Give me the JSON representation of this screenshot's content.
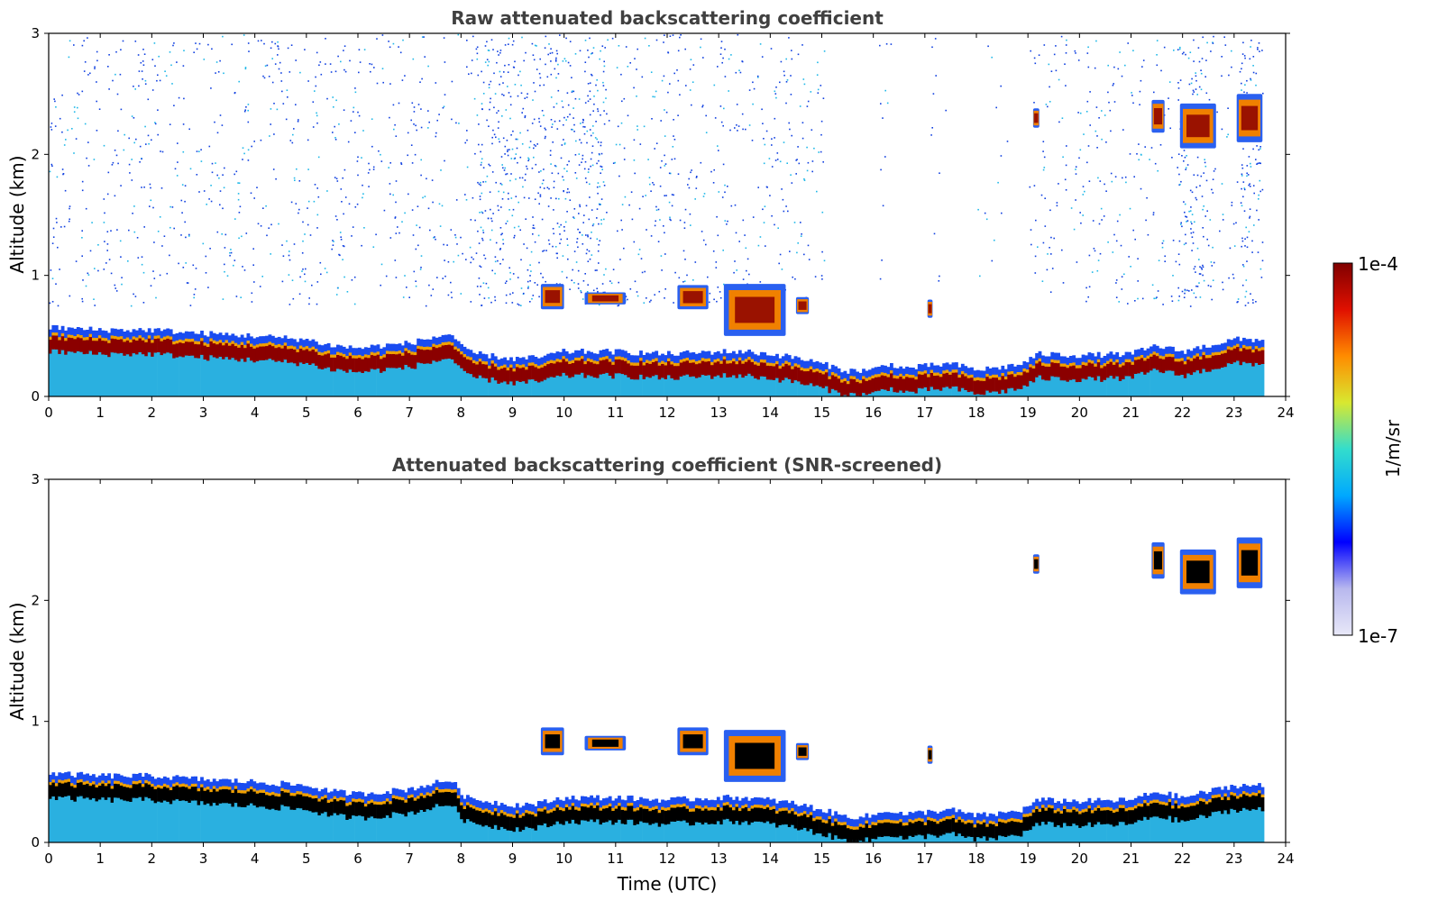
{
  "chart_data": [
    {
      "type": "heatmap",
      "title": "Raw attenuated backscattering coefficient",
      "xlabel": "",
      "ylabel": "Altitude (km)",
      "xlim": [
        0,
        24
      ],
      "ylim": [
        0,
        3
      ],
      "xticks": [
        "0",
        "1",
        "2",
        "3",
        "4",
        "5",
        "6",
        "7",
        "8",
        "9",
        "10",
        "11",
        "12",
        "13",
        "14",
        "15",
        "16",
        "17",
        "18",
        "19",
        "20",
        "21",
        "22",
        "23",
        "24"
      ],
      "yticks": [
        "0",
        "1",
        "2",
        "3"
      ],
      "data_end_time": 23.55,
      "features": [
        {
          "kind": "noise",
          "t0": 0,
          "t1": 15.05,
          "density": 0.16
        },
        {
          "kind": "noise",
          "t0": 8.3,
          "t1": 10.8,
          "density": 0.26
        },
        {
          "kind": "noise",
          "t0": 16.1,
          "t1": 16.5,
          "density": 0.05
        },
        {
          "kind": "noise",
          "t0": 17.1,
          "t1": 17.4,
          "density": 0.06
        },
        {
          "kind": "noise",
          "t0": 18.0,
          "t1": 18.6,
          "density": 0.04
        },
        {
          "kind": "noise",
          "t0": 19.0,
          "t1": 23.55,
          "density": 0.13
        },
        {
          "kind": "noise",
          "t0": 21.9,
          "t1": 22.6,
          "density": 0.3
        },
        {
          "kind": "noise",
          "t0": 23.1,
          "t1": 23.55,
          "density": 0.3
        },
        {
          "kind": "cloud",
          "t0": 9.55,
          "t1": 10.0,
          "z0": 0.72,
          "z1": 0.93
        },
        {
          "kind": "cloud",
          "t0": 10.4,
          "t1": 11.2,
          "z0": 0.76,
          "z1": 0.86
        },
        {
          "kind": "cloud",
          "t0": 12.2,
          "t1": 12.8,
          "z0": 0.72,
          "z1": 0.92
        },
        {
          "kind": "cloud",
          "t0": 13.1,
          "t1": 14.3,
          "z0": 0.5,
          "z1": 0.93
        },
        {
          "kind": "cloud",
          "t0": 14.5,
          "t1": 14.75,
          "z0": 0.68,
          "z1": 0.82
        },
        {
          "kind": "cloud",
          "t0": 17.05,
          "t1": 17.15,
          "z0": 0.65,
          "z1": 0.8
        },
        {
          "kind": "cloud",
          "t0": 19.1,
          "t1": 19.22,
          "z0": 2.22,
          "z1": 2.38
        },
        {
          "kind": "cloud",
          "t0": 21.4,
          "t1": 21.65,
          "z0": 2.18,
          "z1": 2.45
        },
        {
          "kind": "cloud",
          "t0": 21.95,
          "t1": 22.65,
          "z0": 2.05,
          "z1": 2.42
        },
        {
          "kind": "cloud",
          "t0": 23.05,
          "t1": 23.55,
          "z0": 2.1,
          "z1": 2.5
        }
      ]
    },
    {
      "type": "heatmap",
      "title": "Attenuated backscattering coefficient (SNR-screened)",
      "xlabel": "Time (UTC)",
      "ylabel": "Altitude (km)",
      "xlim": [
        0,
        24
      ],
      "ylim": [
        0,
        3
      ],
      "xticks": [
        "0",
        "1",
        "2",
        "3",
        "4",
        "5",
        "6",
        "7",
        "8",
        "9",
        "10",
        "11",
        "12",
        "13",
        "14",
        "15",
        "16",
        "17",
        "18",
        "19",
        "20",
        "21",
        "22",
        "23",
        "24"
      ],
      "yticks": [
        "0",
        "1",
        "2",
        "3"
      ],
      "data_end_time": 23.55,
      "features": [
        {
          "kind": "cloud",
          "t0": 9.55,
          "t1": 10.0,
          "z0": 0.72,
          "z1": 0.95
        },
        {
          "kind": "cloud",
          "t0": 10.4,
          "t1": 11.2,
          "z0": 0.76,
          "z1": 0.88
        },
        {
          "kind": "cloud",
          "t0": 12.2,
          "t1": 12.8,
          "z0": 0.72,
          "z1": 0.95
        },
        {
          "kind": "cloud",
          "t0": 13.1,
          "t1": 14.3,
          "z0": 0.5,
          "z1": 0.93
        },
        {
          "kind": "cloud",
          "t0": 14.5,
          "t1": 14.75,
          "z0": 0.68,
          "z1": 0.82
        },
        {
          "kind": "cloud",
          "t0": 17.05,
          "t1": 17.15,
          "z0": 0.65,
          "z1": 0.8
        },
        {
          "kind": "cloud",
          "t0": 19.1,
          "t1": 19.22,
          "z0": 2.22,
          "z1": 2.38
        },
        {
          "kind": "cloud",
          "t0": 21.4,
          "t1": 21.65,
          "z0": 2.18,
          "z1": 2.48
        },
        {
          "kind": "cloud",
          "t0": 21.95,
          "t1": 22.65,
          "z0": 2.05,
          "z1": 2.42
        },
        {
          "kind": "cloud",
          "t0": 23.05,
          "t1": 23.55,
          "z0": 2.1,
          "z1": 2.52
        }
      ]
    }
  ],
  "boundary_layer": {
    "time": [
      0,
      1,
      2,
      3,
      4,
      5,
      5.5,
      6,
      7,
      7.8,
      8.1,
      8.5,
      9,
      9.5,
      10,
      11,
      12,
      13,
      13.5,
      14,
      14.5,
      15,
      15.5,
      16,
      16.3,
      16.6,
      17,
      17.5,
      18,
      18.5,
      18.9,
      19.2,
      20,
      21,
      21.5,
      22,
      22.5,
      23,
      23.55
    ],
    "top_km": [
      0.5,
      0.48,
      0.48,
      0.45,
      0.43,
      0.4,
      0.35,
      0.33,
      0.37,
      0.45,
      0.3,
      0.27,
      0.24,
      0.25,
      0.3,
      0.3,
      0.28,
      0.3,
      0.3,
      0.28,
      0.25,
      0.2,
      0.14,
      0.15,
      0.2,
      0.16,
      0.18,
      0.2,
      0.15,
      0.17,
      0.2,
      0.28,
      0.27,
      0.28,
      0.35,
      0.3,
      0.35,
      0.4,
      0.4
    ]
  },
  "colorbar": {
    "label": "1/m/sr",
    "max_label": "1e-4",
    "min_label": "1e-7",
    "colors": [
      "#e8e8f8",
      "#b8b8ee",
      "#0000ff",
      "#00a8ff",
      "#33ddcc",
      "#d8e830",
      "#ff8c00",
      "#e01000",
      "#800000"
    ]
  },
  "colors": {
    "noise_blue": "#1040e0",
    "noise_cyan": "#20b8e8",
    "layer_core": "#8b0000",
    "screened_core": "#000000",
    "aerosol_cyan": "#2ab0e0"
  }
}
